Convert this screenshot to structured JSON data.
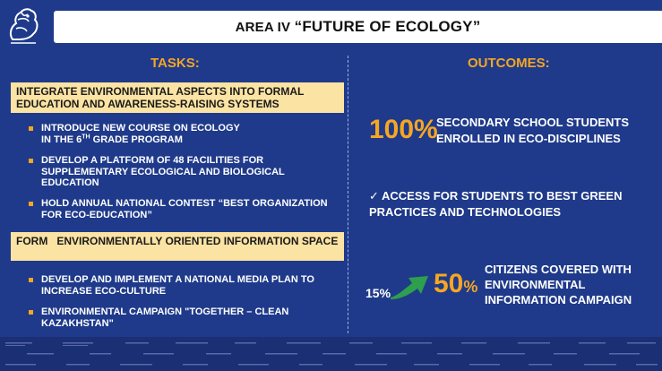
{
  "title": {
    "prefix": "AREA IV ",
    "name": "“FUTURE OF ECOLOGY”"
  },
  "tasks": {
    "heading": "TASKS:",
    "groups": [
      {
        "title": "INTEGRATE ENVIRONMENTAL ASPECTS INTO FORMAL EDUCATION AND AWARENESS-RAISING SYSTEMS",
        "items": [
          {
            "line1": "INTRODUCE NEW COURSE ON ECOLOGY",
            "line2_pre": "IN THE 6",
            "line2_sup": "TH",
            "line2_post": " GRADE PROGRAM"
          },
          {
            "text": "DEVELOP A PLATFORM OF 48 FACILITIES FOR SUPPLEMENTARY ECOLOGICAL AND BIOLOGICAL EDUCATION"
          },
          {
            "text": "HOLD ANNUAL NATIONAL CONTEST “BEST ORGANIZATION FOR ECO-EDUCATION”"
          }
        ]
      },
      {
        "title": "FORM   ENVIRONMENTALLY ORIENTED INFORMATION SPACE",
        "items": [
          {
            "text": "DEVELOP AND IMPLEMENT A NATIONAL MEDIA PLAN TO INCREASE ECO-CULTURE"
          },
          {
            "text": "ENVIRONMENTAL CAMPAIGN \"TOGETHER – CLEAN KAZAKHSTAN\""
          }
        ]
      }
    ]
  },
  "outcomes": {
    "heading": "OUTCOMES:",
    "o1": {
      "value": "100%",
      "text": "SECONDARY SCHOOL STUDENTS ENROLLED IN ECO-DISCIPLINES"
    },
    "o2": {
      "text": "✓ ACCESS FOR STUDENTS TO BEST GREEN PRACTICES AND TECHNOLOGIES"
    },
    "o3": {
      "from": "15%",
      "to_num": "50",
      "to_pct": "%",
      "text": "CITIZENS COVERED WITH ENVIRONMENTAL INFORMATION CAMPAIGN"
    }
  },
  "colors": {
    "background": "#1f3a8a",
    "accent": "#f5a623",
    "box": "#fbe3a3",
    "arrow": "#2e9e4f"
  },
  "icons": {
    "logo": "snow-leopard-emblem-icon",
    "arrow": "curved-arrow-right-icon"
  }
}
